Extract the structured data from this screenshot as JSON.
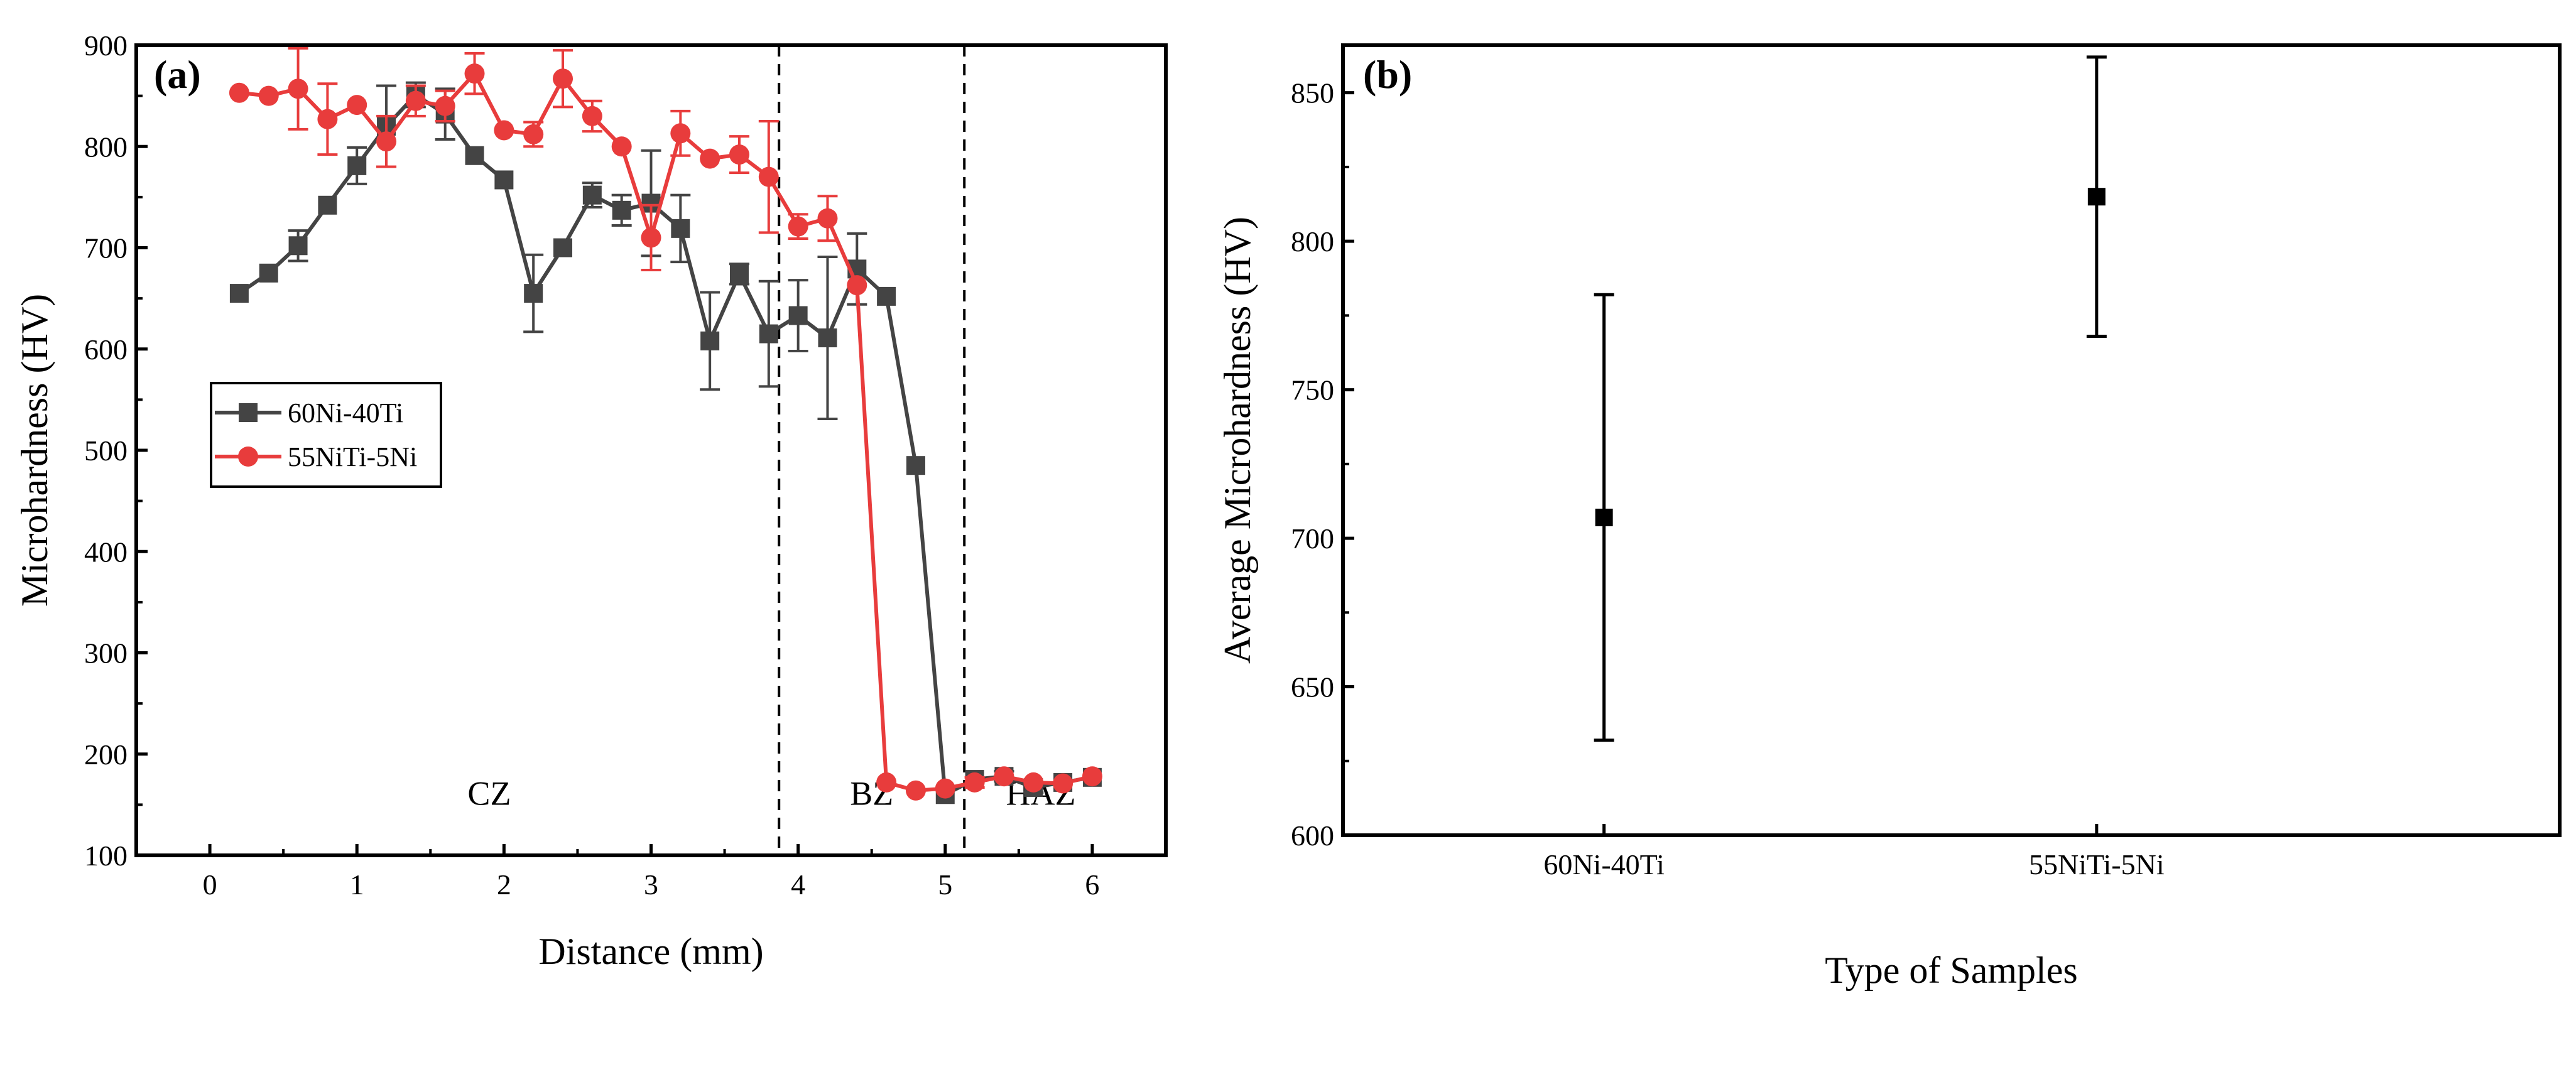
{
  "chart_data": [
    {
      "type": "line",
      "panel_label": "(a)",
      "xlabel": "Distance (mm)",
      "ylabel": "Microhardness (HV)",
      "xlim": [
        -0.5,
        6.5
      ],
      "ylim": [
        100,
        900
      ],
      "xticks": [
        "0",
        "1",
        "2",
        "3",
        "4",
        "5",
        "6"
      ],
      "yticks": [
        "100",
        "200",
        "300",
        "400",
        "500",
        "600",
        "700",
        "800",
        "900"
      ],
      "x": [
        0.2,
        0.4,
        0.6,
        0.8,
        1.0,
        1.2,
        1.4,
        1.6,
        1.8,
        2.0,
        2.2,
        2.4,
        2.6,
        2.8,
        3.0,
        3.2,
        3.4,
        3.6,
        3.8,
        4.0,
        4.2,
        4.4,
        4.6,
        4.8,
        5.0,
        5.2,
        5.4,
        5.6,
        5.8,
        6.0
      ],
      "series": [
        {
          "name": "60Ni-40Ti",
          "color": "#444444",
          "marker": "square",
          "values": [
            655,
            675,
            702,
            742,
            781,
            820,
            851,
            832,
            791,
            767,
            655,
            700,
            752,
            737,
            744,
            719,
            608,
            674,
            615,
            633,
            611,
            679,
            652,
            485,
            160,
            175,
            178,
            167,
            172,
            177
          ],
          "errors": [
            0,
            0,
            15,
            0,
            18,
            40,
            12,
            25,
            0,
            0,
            38,
            0,
            12,
            15,
            52,
            33,
            48,
            10,
            52,
            35,
            80,
            35,
            0,
            0,
            0,
            0,
            5,
            5,
            0,
            0
          ]
        },
        {
          "name": "55NiTi-5Ni",
          "color": "#e83c3c",
          "marker": "circle",
          "values": [
            853,
            850,
            857,
            827,
            841,
            805,
            845,
            840,
            872,
            816,
            812,
            867,
            830,
            800,
            710,
            813,
            788,
            792,
            770,
            721,
            729,
            663,
            172,
            164,
            166,
            172,
            178,
            172,
            171,
            178
          ],
          "errors": [
            0,
            0,
            40,
            35,
            0,
            25,
            15,
            15,
            20,
            0,
            12,
            28,
            15,
            0,
            32,
            22,
            0,
            18,
            55,
            12,
            22,
            0,
            0,
            0,
            0,
            5,
            0,
            0,
            0,
            0
          ]
        }
      ],
      "boundaries": [
        3.87,
        5.13
      ],
      "zones": [
        {
          "label": "CZ",
          "x": 1.9
        },
        {
          "label": "BZ",
          "x": 4.5
        },
        {
          "label": "HAZ",
          "x": 5.65
        }
      ],
      "legend": "middle-left"
    },
    {
      "type": "scatter",
      "panel_label": "(b)",
      "xlabel": "Type of Samples",
      "ylabel": "Average Microhardness (HV)",
      "ylim": [
        600,
        866
      ],
      "yticks": [
        "600",
        "650",
        "700",
        "750",
        "800",
        "850"
      ],
      "categories": [
        "60Ni-40Ti",
        "55NiTi-5Ni"
      ],
      "values": [
        707,
        815
      ],
      "errors": [
        75,
        47
      ],
      "color": "#000000"
    }
  ]
}
